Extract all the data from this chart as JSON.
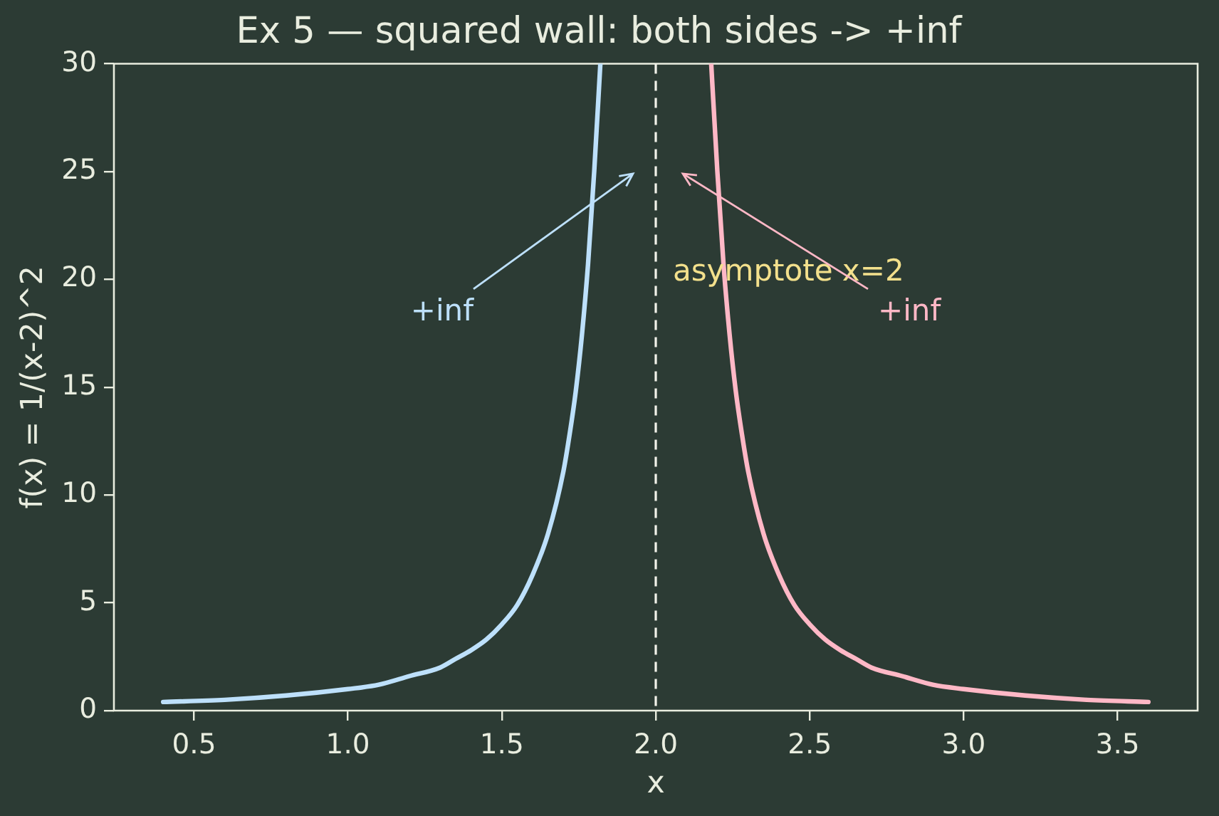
{
  "chart_data": {
    "type": "line",
    "title": "Ex 5 — squared wall: both sides -> +inf",
    "xlabel": "x",
    "ylabel": "f(x) = 1/(x-2)^2",
    "series": [
      {
        "color": "#bde0fb",
        "x": [
          0.4,
          0.6,
          0.8,
          1.0,
          1.1,
          1.2,
          1.3,
          1.35,
          1.4,
          1.45,
          1.5,
          1.55,
          1.6,
          1.65,
          1.7,
          1.72,
          1.74,
          1.76,
          1.78,
          1.8,
          1.82
        ],
        "values": [
          0.4,
          0.5,
          0.7,
          1.0,
          1.2,
          1.6,
          2.0,
          2.4,
          2.8,
          3.3,
          4.0,
          4.9,
          6.3,
          8.2,
          11.1,
          12.8,
          14.8,
          17.4,
          20.7,
          25.0,
          30.0
        ]
      },
      {
        "color": "#ffb8c6",
        "x": [
          2.18,
          2.2,
          2.22,
          2.24,
          2.26,
          2.28,
          2.3,
          2.35,
          2.4,
          2.45,
          2.5,
          2.55,
          2.6,
          2.65,
          2.7,
          2.8,
          2.9,
          3.0,
          3.2,
          3.4,
          3.6
        ],
        "values": [
          30.0,
          25.0,
          20.7,
          17.4,
          14.8,
          12.8,
          11.1,
          8.2,
          6.3,
          4.9,
          4.0,
          3.3,
          2.8,
          2.4,
          2.0,
          1.6,
          1.2,
          1.0,
          0.7,
          0.5,
          0.4
        ]
      }
    ],
    "xlim": [
      0.24,
      3.76
    ],
    "xticks": [
      0.5,
      {
        "value": 1,
        "label": "1.0"
      },
      1.5,
      {
        "value": 2,
        "label": "2.0"
      },
      2.5,
      {
        "value": 3,
        "label": "3.0"
      },
      3.5
    ],
    "ylim": [
      0,
      30
    ],
    "yticks": [
      0,
      5,
      10,
      15,
      20,
      25,
      30
    ],
    "ref_lines": [
      {
        "axis": "x",
        "value": 2,
        "label": "asymptote x=2",
        "color": "#f2f2ea",
        "line_style": "dashed"
      }
    ],
    "annotations": [
      "+inf",
      "+inf"
    ]
  }
}
